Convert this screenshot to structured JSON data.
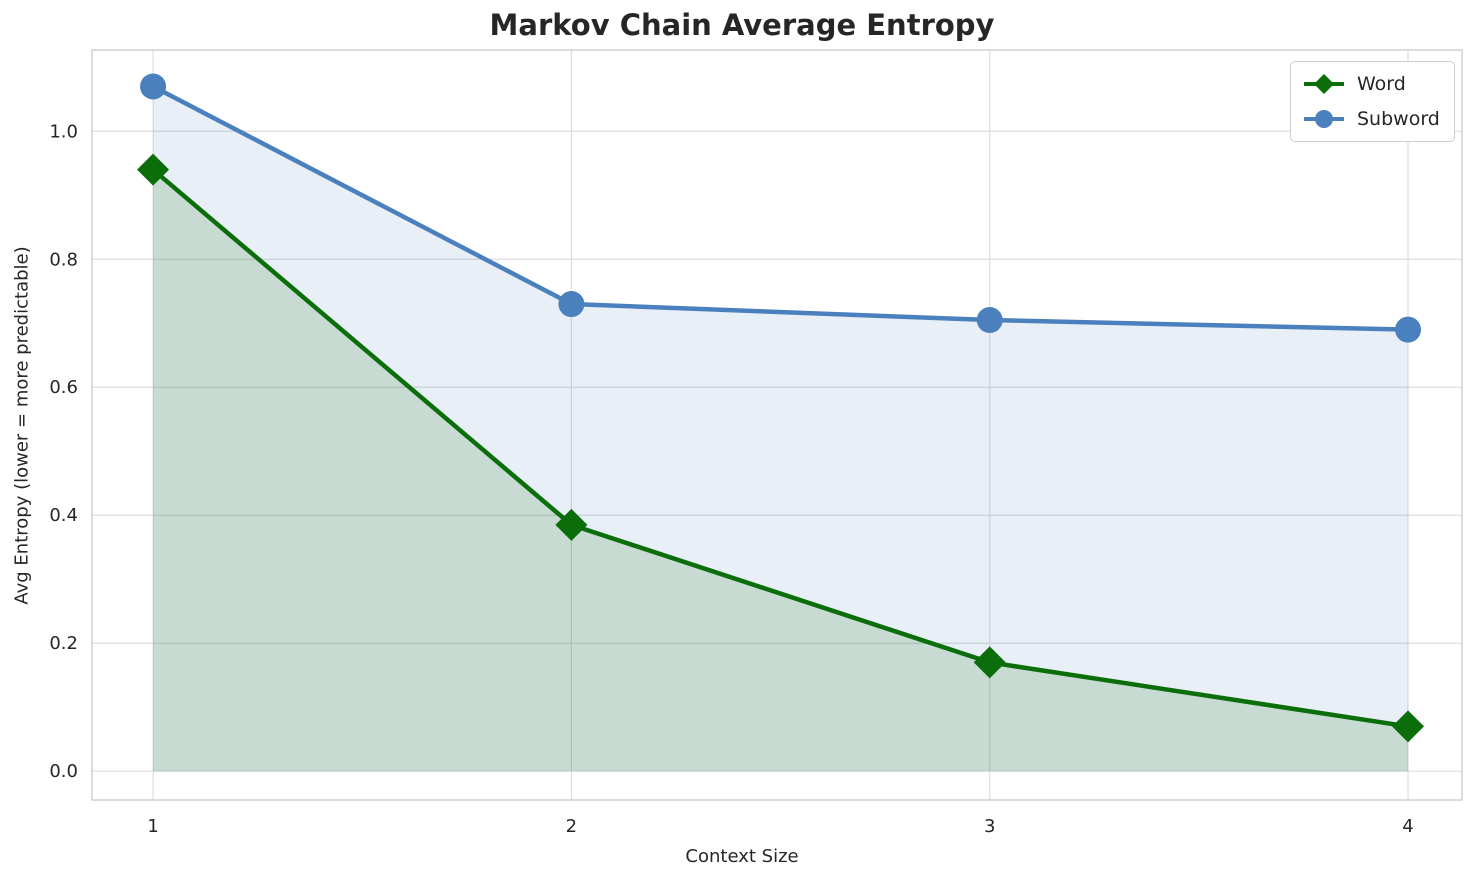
{
  "chart_data": {
    "type": "line",
    "title": "Markov Chain Average Entropy",
    "xlabel": "Context Size",
    "ylabel": "Avg Entropy (lower = more predictable)",
    "x": [
      1,
      2,
      3,
      4
    ],
    "xtick_labels": [
      "1",
      "2",
      "3",
      "4"
    ],
    "yticks": [
      0.0,
      0.2,
      0.4,
      0.6,
      0.8,
      1.0
    ],
    "ytick_labels": [
      "0.0",
      "0.2",
      "0.4",
      "0.6",
      "0.8",
      "1.0"
    ],
    "xlim": [
      0.854,
      4.129
    ],
    "ylim": [
      -0.045,
      1.127
    ],
    "grid": true,
    "legend_position": "upper right",
    "series": [
      {
        "name": "Word",
        "values": [
          0.94,
          0.385,
          0.17,
          0.07
        ],
        "color": "#0b6e0b",
        "marker": "diamond",
        "fill": true,
        "fill_alpha": 0.15,
        "line_width": 4.5
      },
      {
        "name": "Subword",
        "values": [
          1.07,
          0.73,
          0.705,
          0.69
        ],
        "color": "#4a80bd",
        "marker": "circle",
        "fill": true,
        "fill_alpha": 0.13,
        "line_width": 4.5
      }
    ],
    "colors": {
      "grid": "#dddddd",
      "frame": "#cccccc",
      "tick_text": "#262626",
      "background": "#ffffff"
    }
  }
}
